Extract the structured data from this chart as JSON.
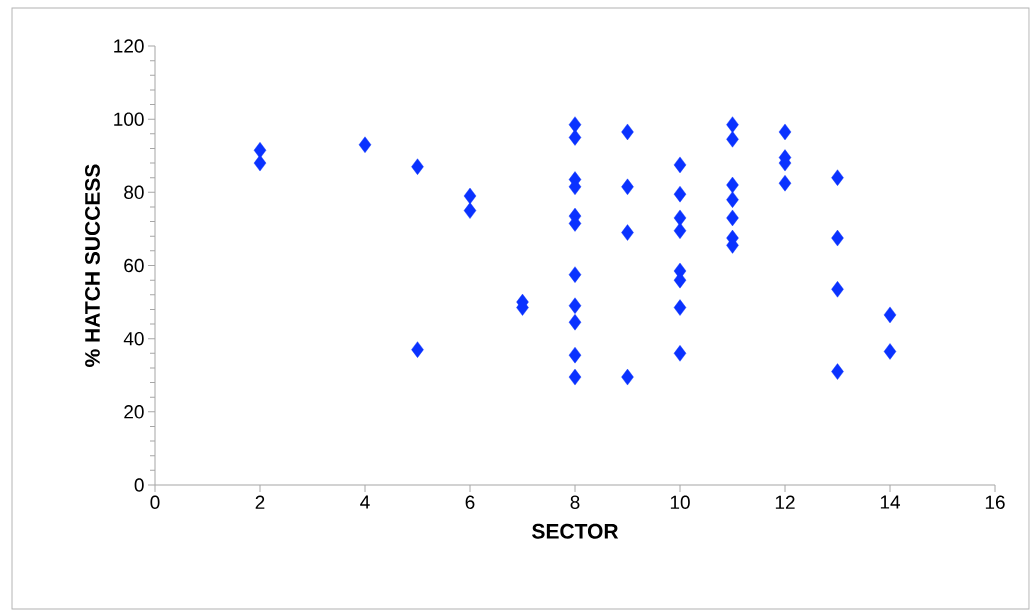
{
  "chart_data": {
    "type": "scatter",
    "xlabel": "SECTOR",
    "ylabel": "% HATCH SUCCESS",
    "x": [
      2,
      2,
      4,
      5,
      5,
      6,
      6,
      7,
      7,
      8,
      8,
      8,
      8,
      8,
      8,
      8,
      8,
      8,
      8,
      8,
      9,
      9,
      9,
      9,
      10,
      10,
      10,
      10,
      10,
      10,
      10,
      10,
      11,
      11,
      11,
      11,
      11,
      11,
      11,
      12,
      12,
      12,
      12,
      13,
      13,
      13,
      13,
      14,
      14
    ],
    "values": [
      91.5,
      88,
      93,
      87,
      37,
      79,
      75,
      50,
      48.5,
      98.5,
      95,
      83.5,
      81.5,
      73.5,
      71.5,
      57.5,
      49,
      44.5,
      35.5,
      29.5,
      96.5,
      81.5,
      69,
      29.5,
      87.5,
      79.5,
      73,
      69.5,
      58.5,
      56,
      48.5,
      36,
      98.5,
      94.5,
      82,
      78,
      73,
      67.5,
      65.5,
      96.5,
      89.5,
      88,
      82.5,
      84,
      67.5,
      53.5,
      31,
      46.5,
      36.5
    ],
    "color": "#0a32ff",
    "marker": "diamond",
    "xlim": [
      0,
      16
    ],
    "xticks": [
      0,
      2,
      4,
      6,
      8,
      10,
      12,
      14,
      16
    ],
    "ylim": [
      0,
      120
    ],
    "yticks": [
      0,
      20,
      40,
      60,
      80,
      100,
      120
    ]
  }
}
